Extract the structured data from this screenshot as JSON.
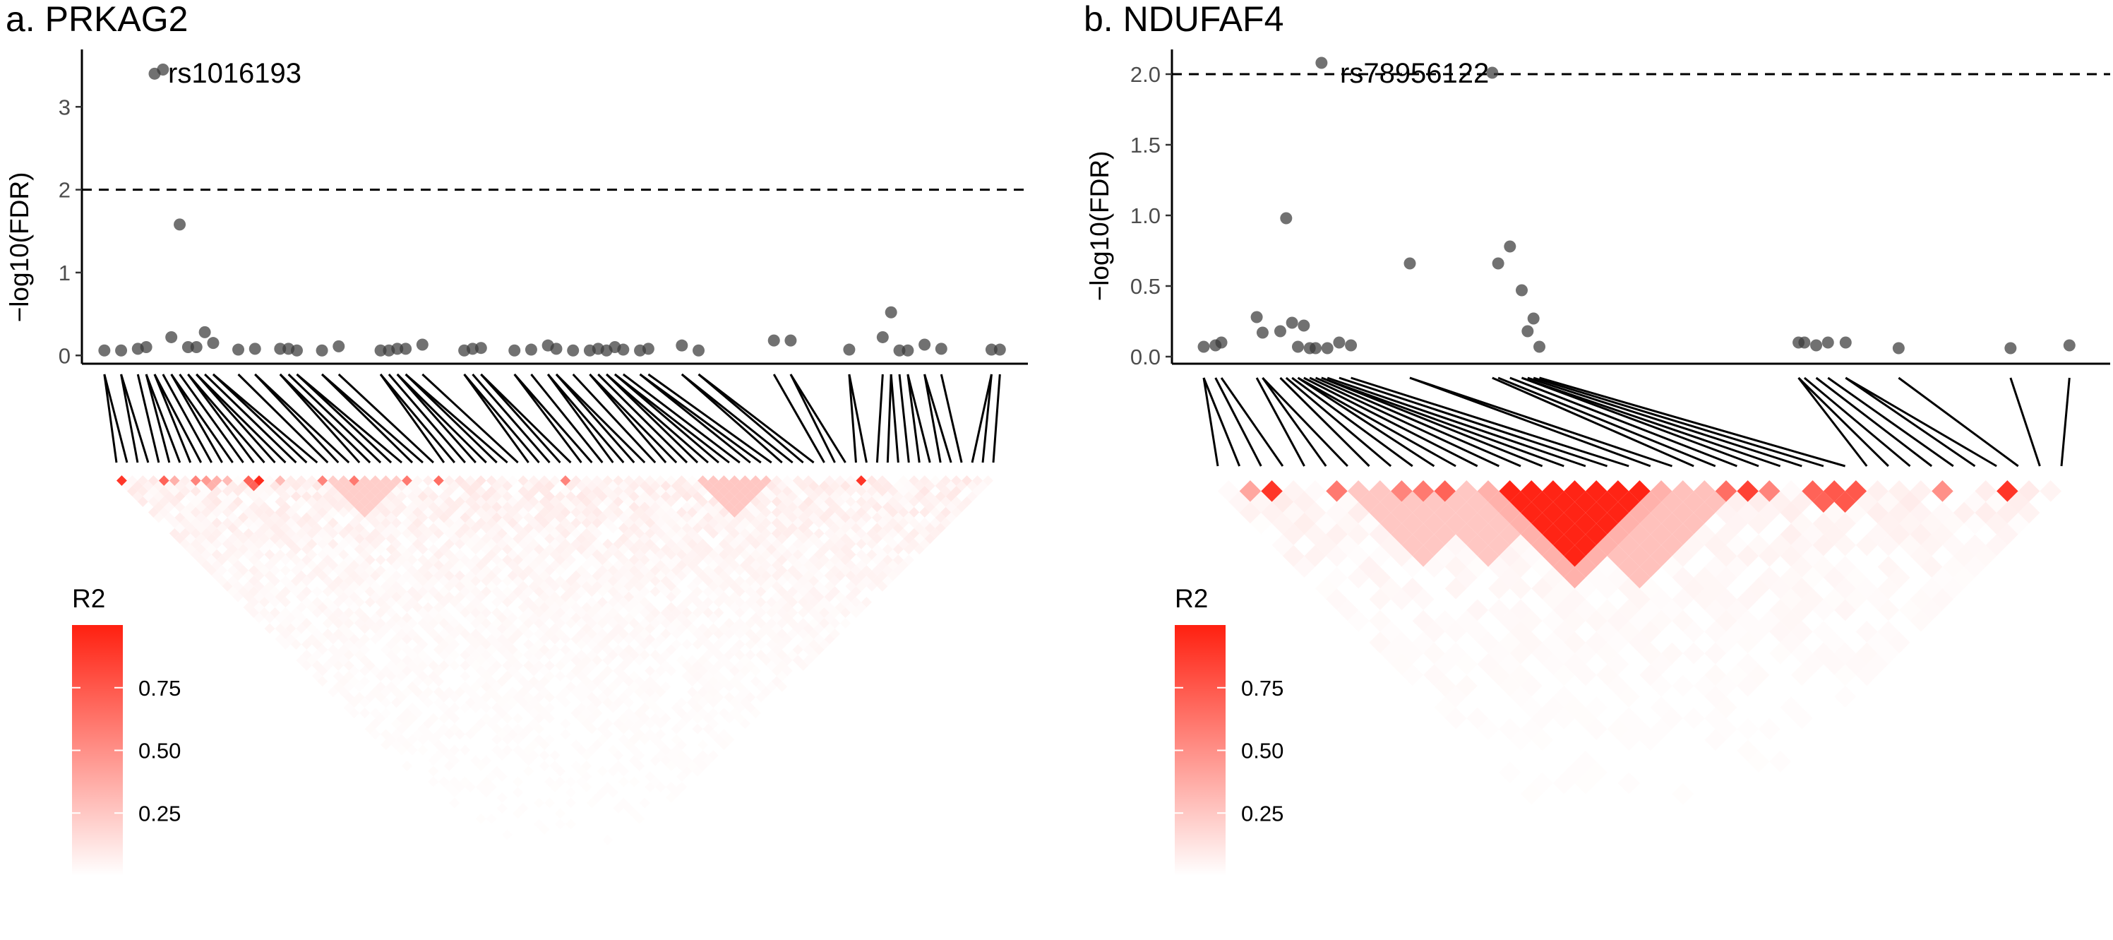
{
  "colors": {
    "point": "#3a3a3a",
    "ld_low": "#ffffff",
    "ld_high": "#ff2010",
    "axis": "#000000",
    "threshold": "#000000"
  },
  "legend": {
    "title": "R2",
    "ticks": [
      0.25,
      0.5,
      0.75
    ],
    "tick_labels": [
      "0.25",
      "0.50",
      "0.75"
    ]
  },
  "chart_data": [
    {
      "type": "scatter",
      "title": "a.  PRKAG2",
      "xlabel": "",
      "ylabel": "−log10(FDR)",
      "ylim": [
        -0.1,
        3.65
      ],
      "yticks": [
        0,
        1,
        2,
        3
      ],
      "ytick_labels": [
        "0",
        "1",
        "2",
        "3"
      ],
      "threshold": 2,
      "grid": false,
      "legend_position": "bottom-left",
      "annotation": {
        "text": "rs1016193",
        "x": 7,
        "y": 3.45
      },
      "points": [
        [
          1,
          0.06
        ],
        [
          3,
          0.06
        ],
        [
          5,
          0.08
        ],
        [
          6,
          0.1
        ],
        [
          7,
          3.4
        ],
        [
          8,
          3.45
        ],
        [
          9,
          0.22
        ],
        [
          10,
          1.58
        ],
        [
          11,
          0.1
        ],
        [
          12,
          0.1
        ],
        [
          13,
          0.28
        ],
        [
          14,
          0.15
        ],
        [
          17,
          0.07
        ],
        [
          19,
          0.08
        ],
        [
          22,
          0.08
        ],
        [
          23,
          0.08
        ],
        [
          24,
          0.06
        ],
        [
          27,
          0.06
        ],
        [
          29,
          0.11
        ],
        [
          34,
          0.06
        ],
        [
          35,
          0.06
        ],
        [
          36,
          0.08
        ],
        [
          37,
          0.08
        ],
        [
          39,
          0.13
        ],
        [
          44,
          0.06
        ],
        [
          45,
          0.08
        ],
        [
          46,
          0.09
        ],
        [
          50,
          0.06
        ],
        [
          52,
          0.07
        ],
        [
          54,
          0.12
        ],
        [
          55,
          0.08
        ],
        [
          57,
          0.06
        ],
        [
          59,
          0.06
        ],
        [
          60,
          0.08
        ],
        [
          61,
          0.06
        ],
        [
          62,
          0.1
        ],
        [
          63,
          0.07
        ],
        [
          65,
          0.06
        ],
        [
          66,
          0.08
        ],
        [
          70,
          0.12
        ],
        [
          72,
          0.06
        ],
        [
          81,
          0.18
        ],
        [
          83,
          0.18
        ],
        [
          90,
          0.07
        ],
        [
          94,
          0.22
        ],
        [
          95,
          0.52
        ],
        [
          96,
          0.06
        ],
        [
          97,
          0.06
        ],
        [
          99,
          0.13
        ],
        [
          101,
          0.08
        ],
        [
          107,
          0.07
        ],
        [
          108,
          0.07
        ]
      ],
      "ld_strong": [
        {
          "snps": [
            0,
            1
          ],
          "r2": 0.9
        },
        {
          "snps": [
            4,
            5
          ],
          "r2": 0.7
        },
        {
          "snps": [
            5,
            6
          ],
          "r2": 0.35
        },
        {
          "snps": [
            7,
            8
          ],
          "r2": 0.55
        },
        {
          "snps": [
            8,
            9
          ],
          "r2": 0.45
        },
        {
          "snps": [
            10,
            11
          ],
          "r2": 0.3
        },
        {
          "snps": [
            13,
            14
          ],
          "r2": 0.95
        },
        {
          "snps": [
            12,
            14
          ],
          "r2": 0.7
        },
        {
          "snps": [
            19,
            20
          ],
          "r2": 0.55
        },
        {
          "snps": [
            22,
            23
          ],
          "r2": 0.6
        },
        {
          "snps": [
            27,
            28
          ],
          "r2": 0.6
        },
        {
          "snps": [
            30,
            31
          ],
          "r2": 0.65
        },
        {
          "snps": [
            42,
            43
          ],
          "r2": 0.55
        },
        {
          "snps": [
            70,
            71
          ],
          "r2": 0.9
        },
        {
          "snps": [
            8,
            10
          ],
          "r2": 0.35
        },
        {
          "snps": [
            15,
            16
          ],
          "r2": 0.3
        },
        {
          "snps": [
            55,
            62
          ],
          "r2": 0.25
        },
        {
          "snps": [
            20,
            27
          ],
          "r2": 0.22
        }
      ],
      "n_snps": 84,
      "ld_seed": 7,
      "ld_base": 0.12
    },
    {
      "type": "scatter",
      "title": "b.  NDUFAF4",
      "xlabel": "",
      "ylabel": "−log10(FDR)",
      "ylim": [
        -0.05,
        2.15
      ],
      "yticks": [
        0.0,
        0.5,
        1.0,
        1.5,
        2.0
      ],
      "ytick_labels": [
        "0.0",
        "0.5",
        "1.0",
        "1.5",
        "2.0"
      ],
      "threshold": 2,
      "grid": false,
      "legend_position": "bottom-left",
      "annotation": {
        "text": "rs78956122",
        "x": 21,
        "y": 2.08
      },
      "points": [
        [
          1,
          0.07
        ],
        [
          3,
          0.08
        ],
        [
          4,
          0.1
        ],
        [
          10,
          0.28
        ],
        [
          11,
          0.17
        ],
        [
          14,
          0.18
        ],
        [
          15,
          0.98
        ],
        [
          16,
          0.24
        ],
        [
          17,
          0.07
        ],
        [
          18,
          0.22
        ],
        [
          19,
          0.06
        ],
        [
          20,
          0.06
        ],
        [
          21,
          2.08
        ],
        [
          22,
          0.06
        ],
        [
          24,
          0.1
        ],
        [
          26,
          0.08
        ],
        [
          36,
          0.66
        ],
        [
          50,
          2.01
        ],
        [
          51,
          0.66
        ],
        [
          53,
          0.78
        ],
        [
          55,
          0.47
        ],
        [
          56,
          0.18
        ],
        [
          57,
          0.27
        ],
        [
          58,
          0.07
        ],
        [
          102,
          0.1
        ],
        [
          103,
          0.1
        ],
        [
          105,
          0.08
        ],
        [
          107,
          0.1
        ],
        [
          110,
          0.1
        ],
        [
          119,
          0.06
        ],
        [
          138,
          0.06
        ],
        [
          148,
          0.08
        ]
      ],
      "ld_strong": [
        {
          "snps": [
            1,
            2
          ],
          "r2": 0.4
        },
        {
          "snps": [
            2,
            3
          ],
          "r2": 0.9
        },
        {
          "snps": [
            5,
            6
          ],
          "r2": 0.6
        },
        {
          "snps": [
            8,
            9
          ],
          "r2": 0.55
        },
        {
          "snps": [
            9,
            10
          ],
          "r2": 0.6
        },
        {
          "snps": [
            10,
            11
          ],
          "r2": 0.7
        },
        {
          "snps": [
            13,
            20
          ],
          "r2": 0.98
        },
        {
          "snps": [
            23,
            24
          ],
          "r2": 0.65
        },
        {
          "snps": [
            24,
            25
          ],
          "r2": 0.85
        },
        {
          "snps": [
            25,
            26
          ],
          "r2": 0.55
        },
        {
          "snps": [
            27,
            29
          ],
          "r2": 0.7
        },
        {
          "snps": [
            28,
            30
          ],
          "r2": 0.75
        },
        {
          "snps": [
            33,
            34
          ],
          "r2": 0.5
        },
        {
          "snps": [
            36,
            37
          ],
          "r2": 0.9
        },
        {
          "snps": [
            12,
            21
          ],
          "r2": 0.35
        },
        {
          "snps": [
            6,
            13
          ],
          "r2": 0.25
        },
        {
          "snps": [
            15,
            24
          ],
          "r2": 0.28
        },
        {
          "snps": [
            9,
            16
          ],
          "r2": 0.25
        }
      ],
      "n_snps": 40,
      "ld_seed": 13,
      "ld_base": 0.1
    }
  ]
}
